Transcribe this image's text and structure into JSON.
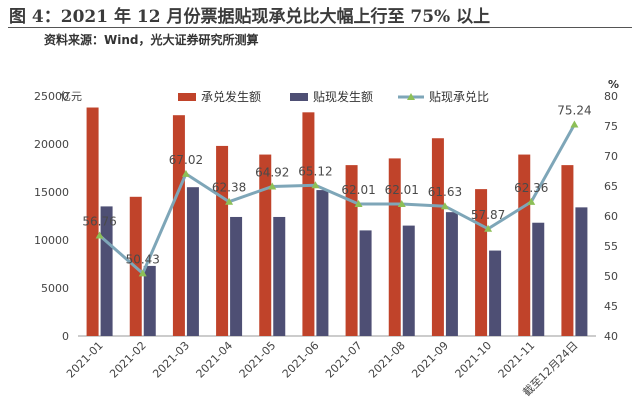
{
  "header": {
    "title": "图 4：2021 年 12 月份票据贴现承兑比大幅上行至 75% 以上",
    "source": "资料来源：Wind，光大证券研究所测算"
  },
  "colors": {
    "acceptance": "#c0432a",
    "discount": "#4e4f74",
    "ratio_line": "#7ea6b8",
    "ratio_marker": "#8dbf57"
  },
  "chart_data": {
    "type": "bar",
    "categories": [
      "2021-01",
      "2021-02",
      "2021-03",
      "2021-04",
      "2021-05",
      "2021-06",
      "2021-07",
      "2021-08",
      "2021-09",
      "2021-10",
      "2021-11",
      "截至12月24日"
    ],
    "series": [
      {
        "name": "承兑发生额",
        "type": "bar",
        "axis": "left",
        "values": [
          23800,
          14500,
          23000,
          19800,
          18900,
          23300,
          17800,
          18500,
          20600,
          15300,
          18900,
          17800
        ]
      },
      {
        "name": "贴现发生额",
        "type": "bar",
        "axis": "left",
        "values": [
          13500,
          7300,
          15500,
          12400,
          12400,
          15200,
          11000,
          11500,
          12900,
          8900,
          11800,
          13400
        ]
      },
      {
        "name": "贴现承兑比",
        "type": "line",
        "axis": "right",
        "values": [
          56.76,
          50.43,
          67.02,
          62.38,
          64.92,
          65.12,
          62.01,
          62.01,
          61.63,
          57.87,
          62.36,
          75.24
        ],
        "labels": [
          "56.76",
          "50.43",
          "67.02",
          "62.38",
          "64.92",
          "65.12",
          "62.01",
          "62.01",
          "61.63",
          "57.87",
          "62.36",
          "75.24"
        ]
      }
    ],
    "left_axis": {
      "unit": "亿元",
      "ylim": [
        0,
        25000
      ],
      "ticks": [
        "0",
        "5000",
        "10000",
        "15000",
        "20000",
        "25000"
      ]
    },
    "right_axis": {
      "unit": "%",
      "ylim": [
        40,
        80
      ],
      "ticks": [
        "40",
        "45",
        "50",
        "55",
        "60",
        "65",
        "70",
        "75",
        "80"
      ]
    },
    "legend": {
      "placement": "top",
      "items": [
        "承兑发生额",
        "贴现发生额",
        "贴现承兑比"
      ]
    },
    "grid": false
  }
}
